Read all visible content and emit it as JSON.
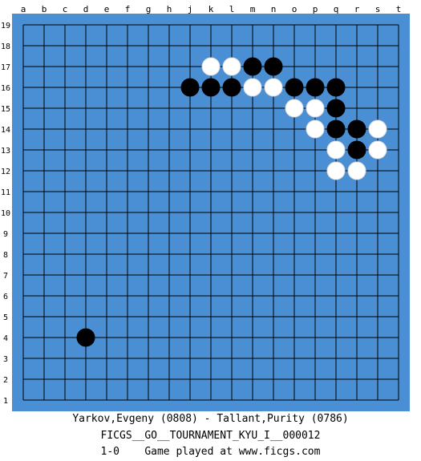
{
  "board": {
    "size": 19,
    "colors": {
      "board": "#4a8fd4",
      "lines": "#000000",
      "black_stone": "#000000",
      "white_stone": "#ffffff"
    },
    "col_labels": [
      "a",
      "b",
      "c",
      "d",
      "e",
      "f",
      "g",
      "h",
      "j",
      "k",
      "l",
      "m",
      "n",
      "o",
      "p",
      "q",
      "r",
      "s",
      "t"
    ],
    "row_labels": [
      "19",
      "18",
      "17",
      "16",
      "15",
      "14",
      "13",
      "12",
      "11",
      "10",
      "9",
      "8",
      "7",
      "6",
      "5",
      "4",
      "3",
      "2",
      "1"
    ],
    "stones": [
      {
        "color": "white",
        "point": "k17"
      },
      {
        "color": "white",
        "point": "l17"
      },
      {
        "color": "black",
        "point": "m17"
      },
      {
        "color": "black",
        "point": "n17"
      },
      {
        "color": "black",
        "point": "j16"
      },
      {
        "color": "black",
        "point": "k16"
      },
      {
        "color": "black",
        "point": "l16"
      },
      {
        "color": "white",
        "point": "m16"
      },
      {
        "color": "white",
        "point": "n16"
      },
      {
        "color": "black",
        "point": "o16"
      },
      {
        "color": "black",
        "point": "p16"
      },
      {
        "color": "black",
        "point": "q16"
      },
      {
        "color": "white",
        "point": "o15"
      },
      {
        "color": "white",
        "point": "p15"
      },
      {
        "color": "black",
        "point": "q15"
      },
      {
        "color": "white",
        "point": "p14"
      },
      {
        "color": "black",
        "point": "q14"
      },
      {
        "color": "black",
        "point": "r14"
      },
      {
        "color": "white",
        "point": "s14"
      },
      {
        "color": "white",
        "point": "q13"
      },
      {
        "color": "black",
        "point": "r13"
      },
      {
        "color": "white",
        "point": "s13"
      },
      {
        "color": "white",
        "point": "q12"
      },
      {
        "color": "white",
        "point": "r12"
      },
      {
        "color": "black",
        "point": "d4"
      }
    ]
  },
  "caption": {
    "players": "Yarkov,Evgeny (0808) - Tallant,Purity (0786)",
    "event": "FICGS__GO__TOURNAMENT_KYU_I__000012",
    "result": "1-0    Game played at www.ficgs.com"
  }
}
